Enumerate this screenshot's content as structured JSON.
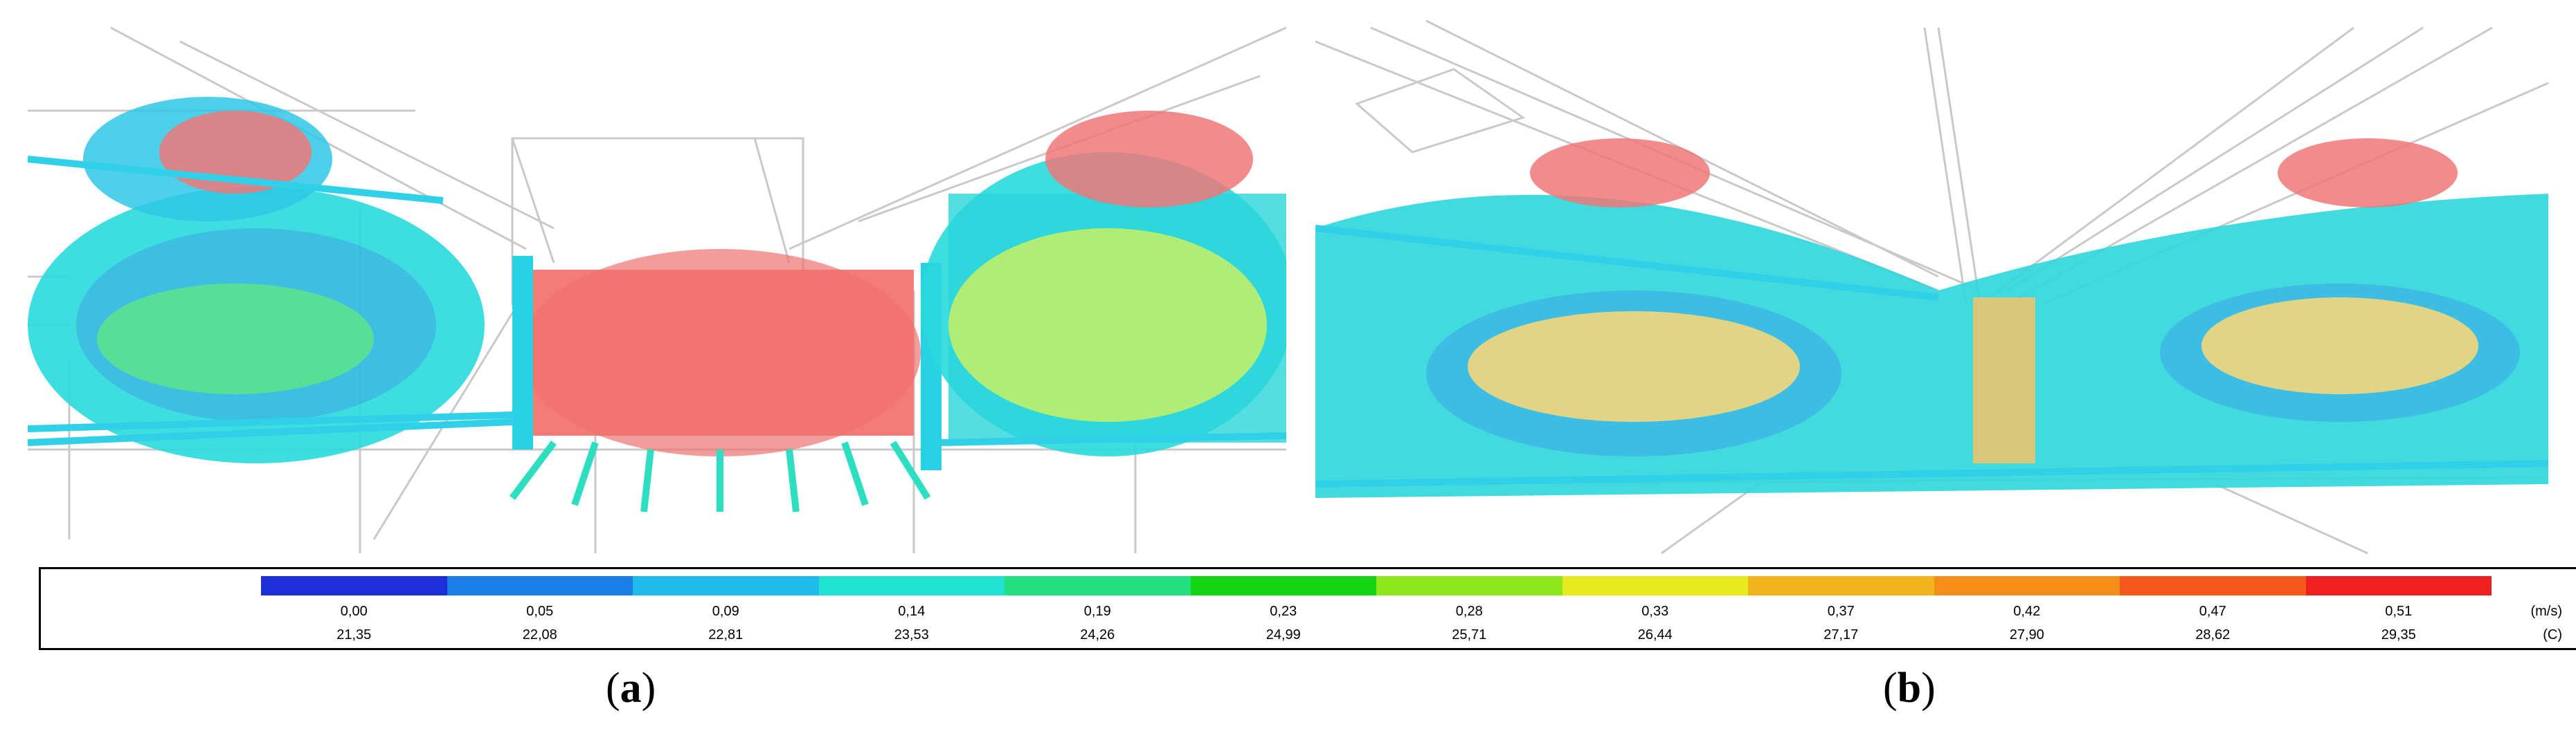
{
  "legend": {
    "colors": [
      "#1d2fd8",
      "#1a7ee6",
      "#1fbbe9",
      "#1fe2d2",
      "#22e07f",
      "#16d416",
      "#8ee61c",
      "#e6ea1e",
      "#f3b31c",
      "#f58e18",
      "#f4581a",
      "#ee2020"
    ],
    "speed_values": [
      "0,00",
      "0,05",
      "0,09",
      "0,14",
      "0,19",
      "0,23",
      "0,28",
      "0,33",
      "0,37",
      "0,42",
      "0,47",
      "0,51"
    ],
    "temp_values": [
      "21,35",
      "22,08",
      "22,81",
      "23,53",
      "24,26",
      "24,99",
      "25,71",
      "26,44",
      "27,17",
      "27,90",
      "28,62",
      "29,35"
    ],
    "speed_unit": "(m/s)",
    "temp_unit": "(C)"
  },
  "captions": {
    "a_open": "(",
    "a_letter": "a",
    "a_close": ")",
    "b_open": "(",
    "b_letter": "b",
    "b_close": ")"
  }
}
